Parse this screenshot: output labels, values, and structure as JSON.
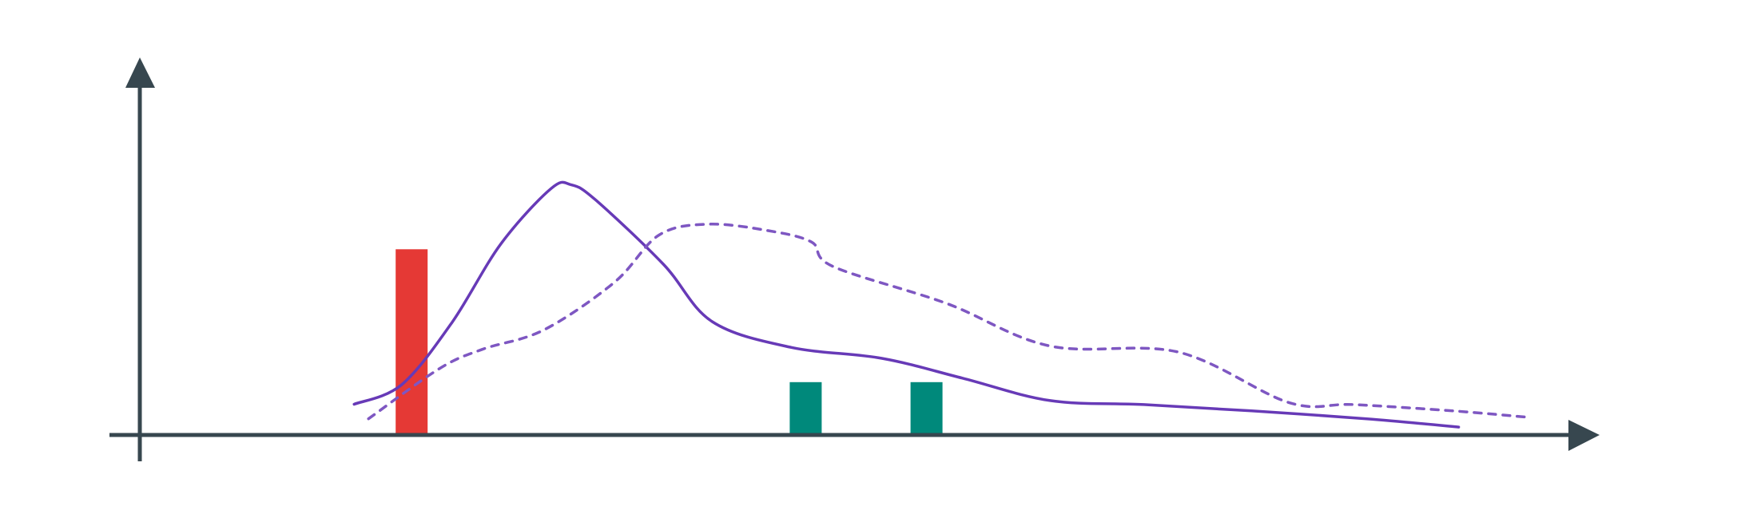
{
  "chart_data": {
    "type": "line",
    "title": "",
    "xlabel": "",
    "ylabel": "",
    "xlim": [
      0,
      100
    ],
    "ylim": [
      0,
      100
    ],
    "grid": false,
    "legend": false,
    "axis_color": "#37474f",
    "series": [
      {
        "style": "solid",
        "color": "#673ab7",
        "x": [
          14.9,
          18.2,
          21.7,
          25.1,
          28.6,
          30.0,
          31.7,
          36.4,
          39.8,
          45.3,
          51.6,
          57.2,
          63.3,
          69.8,
          77.3,
          85.3,
          91.7
        ],
        "y": [
          9.3,
          15.2,
          34.0,
          57.8,
          74.6,
          75.7,
          71.1,
          51.7,
          34.3,
          26.5,
          23.2,
          17.2,
          10.4,
          9.2,
          7.3,
          4.9,
          2.4
        ]
      },
      {
        "style": "dashed",
        "color": "#7e57c2",
        "x": [
          15.9,
          20.8,
          23.8,
          28.1,
          33.0,
          36.1,
          39.5,
          43.6,
          46.7,
          48.2,
          56.1,
          63.3,
          72.2,
          79.9,
          84.4,
          91.3,
          96.4
        ],
        "y": [
          4.9,
          20.0,
          25.9,
          31.8,
          46.2,
          60.5,
          63.8,
          61.9,
          58.4,
          51.0,
          39.8,
          26.9,
          25.1,
          9.8,
          9.2,
          7.3,
          5.4
        ]
      }
    ],
    "bars": [
      {
        "x": 18.9,
        "value": 56.2,
        "color": "#e53935"
      },
      {
        "x": 46.3,
        "value": 16.0,
        "color": "#00897b"
      },
      {
        "x": 54.7,
        "value": 16.0,
        "color": "#00897b"
      }
    ]
  }
}
